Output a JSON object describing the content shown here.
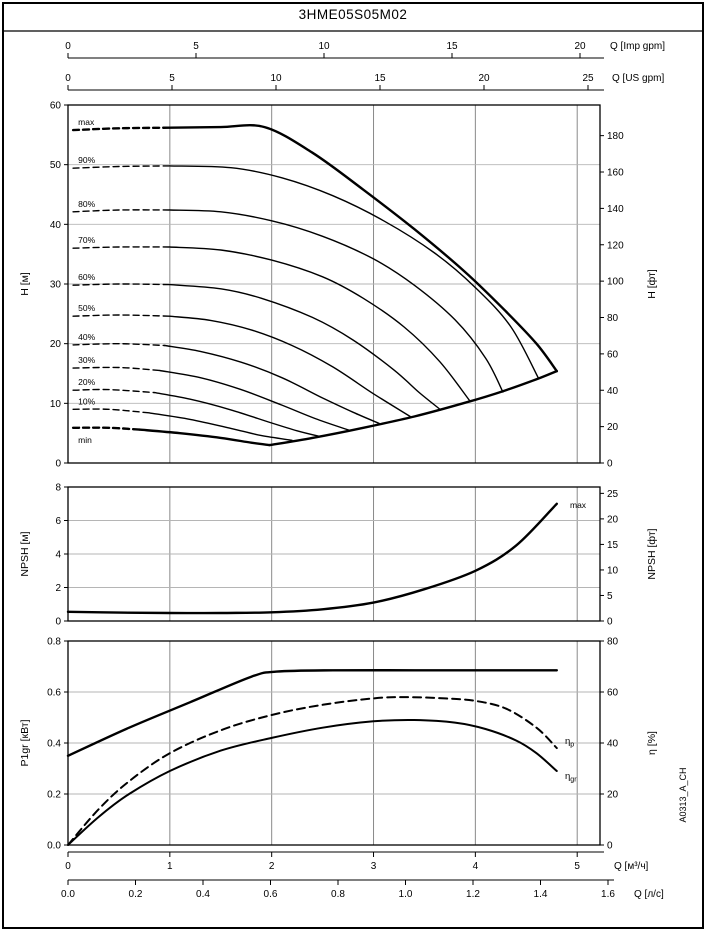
{
  "title": "3HME05S05M02",
  "side_code": "A0313_A_CH",
  "top_axes": [
    {
      "label": "Q [Imp gpm]",
      "ticks": [
        "0",
        "5",
        "10",
        "15",
        "20"
      ]
    },
    {
      "label": "Q [US gpm]",
      "ticks": [
        "0",
        "5",
        "10",
        "15",
        "20",
        "25"
      ]
    }
  ],
  "bottom_axes": [
    {
      "label": "Q [м³/ч]",
      "ticks": [
        "0",
        "1",
        "2",
        "3",
        "4",
        "5"
      ]
    },
    {
      "label": "Q [л/с]",
      "ticks": [
        "0.0",
        "0.2",
        "0.4",
        "0.6",
        "0.8",
        "1.0",
        "1.2",
        "1.4",
        "1.6"
      ]
    }
  ],
  "chart_data": [
    {
      "type": "line",
      "id": "head",
      "ylabel_left": "H [м]",
      "ylabel_right": "H [фт]",
      "ylim_left": [
        0,
        60
      ],
      "xlim_m3h": [
        0,
        5.22
      ],
      "yticks_left": [
        "0",
        "10",
        "20",
        "30",
        "40",
        "50",
        "60"
      ],
      "yticks_right": [
        "0",
        "20",
        "40",
        "60",
        "80",
        "100",
        "120",
        "140",
        "160",
        "180"
      ],
      "curves": [
        {
          "label": "max",
          "bold": true,
          "dash_until": 1.0,
          "points": [
            [
              0.05,
              55.8
            ],
            [
              0.5,
              56.1
            ],
            [
              1.0,
              56.2
            ],
            [
              1.5,
              56.3
            ],
            [
              1.93,
              56.3
            ],
            [
              2.4,
              52.0
            ],
            [
              2.9,
              45.8
            ],
            [
              3.4,
              39.2
            ],
            [
              3.9,
              32.0
            ],
            [
              4.3,
              25.4
            ],
            [
              4.6,
              20.0
            ],
            [
              4.8,
              15.4
            ]
          ]
        },
        {
          "label": "90%",
          "dash_until": 1.0,
          "points": [
            [
              0.05,
              49.4
            ],
            [
              0.5,
              49.7
            ],
            [
              1.0,
              49.8
            ],
            [
              1.6,
              49.5
            ],
            [
              2.1,
              47.8
            ],
            [
              2.6,
              44.8
            ],
            [
              3.1,
              40.6
            ],
            [
              3.6,
              35.2
            ],
            [
              4.0,
              29.4
            ],
            [
              4.35,
              22.8
            ],
            [
              4.62,
              14.2
            ]
          ]
        },
        {
          "label": "80%",
          "dash_until": 1.0,
          "points": [
            [
              0.05,
              42.1
            ],
            [
              0.5,
              42.4
            ],
            [
              1.0,
              42.4
            ],
            [
              1.5,
              42.1
            ],
            [
              2.0,
              40.6
            ],
            [
              2.5,
              38.0
            ],
            [
              3.0,
              34.2
            ],
            [
              3.4,
              29.8
            ],
            [
              3.8,
              24.0
            ],
            [
              4.1,
              17.6
            ],
            [
              4.27,
              11.9
            ]
          ]
        },
        {
          "label": "70%",
          "dash_until": 1.0,
          "points": [
            [
              0.05,
              36.0
            ],
            [
              0.5,
              36.2
            ],
            [
              1.0,
              36.2
            ],
            [
              1.5,
              35.7
            ],
            [
              2.0,
              34.0
            ],
            [
              2.5,
              31.2
            ],
            [
              2.9,
              27.6
            ],
            [
              3.3,
              22.8
            ],
            [
              3.65,
              17.0
            ],
            [
              3.95,
              10.3
            ]
          ]
        },
        {
          "label": "60%",
          "dash_until": 1.0,
          "points": [
            [
              0.05,
              29.8
            ],
            [
              0.5,
              30.0
            ],
            [
              1.0,
              29.9
            ],
            [
              1.5,
              29.2
            ],
            [
              1.9,
              27.6
            ],
            [
              2.4,
              24.4
            ],
            [
              2.8,
              20.6
            ],
            [
              3.2,
              15.6
            ],
            [
              3.45,
              11.8
            ],
            [
              3.66,
              8.9
            ]
          ]
        },
        {
          "label": "50%",
          "dash_until": 1.0,
          "points": [
            [
              0.05,
              24.6
            ],
            [
              0.5,
              24.8
            ],
            [
              1.0,
              24.6
            ],
            [
              1.4,
              23.9
            ],
            [
              1.8,
              22.3
            ],
            [
              2.2,
              19.7
            ],
            [
              2.6,
              16.1
            ],
            [
              3.0,
              11.6
            ],
            [
              3.36,
              7.8
            ]
          ]
        },
        {
          "label": "40%",
          "dash_until": 0.95,
          "points": [
            [
              0.05,
              19.8
            ],
            [
              0.5,
              20.0
            ],
            [
              0.95,
              19.7
            ],
            [
              1.3,
              18.7
            ],
            [
              1.7,
              16.9
            ],
            [
              2.1,
              14.3
            ],
            [
              2.5,
              10.9
            ],
            [
              2.8,
              8.5
            ],
            [
              3.06,
              6.6
            ]
          ]
        },
        {
          "label": "30%",
          "dash_until": 0.9,
          "points": [
            [
              0.05,
              15.9
            ],
            [
              0.5,
              16.0
            ],
            [
              0.9,
              15.5
            ],
            [
              1.3,
              14.3
            ],
            [
              1.7,
              12.3
            ],
            [
              2.1,
              9.7
            ],
            [
              2.45,
              7.3
            ],
            [
              2.76,
              5.5
            ]
          ]
        },
        {
          "label": "20%",
          "dash_until": 0.85,
          "points": [
            [
              0.05,
              12.2
            ],
            [
              0.4,
              12.3
            ],
            [
              0.85,
              11.8
            ],
            [
              1.2,
              10.7
            ],
            [
              1.6,
              8.9
            ],
            [
              2.0,
              6.7
            ],
            [
              2.25,
              5.4
            ],
            [
              2.46,
              4.5
            ]
          ]
        },
        {
          "label": "10%",
          "dash_until": 0.8,
          "points": [
            [
              0.05,
              9.0
            ],
            [
              0.4,
              9.0
            ],
            [
              0.8,
              8.4
            ],
            [
              1.2,
              7.3
            ],
            [
              1.6,
              5.8
            ],
            [
              1.9,
              4.6
            ],
            [
              2.2,
              3.8
            ]
          ]
        },
        {
          "label": "min",
          "bold": true,
          "dash_until": 0.7,
          "points": [
            [
              0.05,
              5.9
            ],
            [
              0.4,
              5.9
            ],
            [
              0.7,
              5.6
            ],
            [
              1.1,
              5.0
            ],
            [
              1.5,
              4.2
            ],
            [
              1.8,
              3.4
            ],
            [
              1.98,
              3.0
            ]
          ]
        }
      ],
      "envelope": [
        [
          1.98,
          3.0
        ],
        [
          2.4,
          4.2
        ],
        [
          2.9,
          5.9
        ],
        [
          3.4,
          7.8
        ],
        [
          3.9,
          10.1
        ],
        [
          4.3,
          12.2
        ],
        [
          4.64,
          14.3
        ],
        [
          4.8,
          15.4
        ]
      ]
    },
    {
      "type": "line",
      "id": "npsh",
      "ylabel_left": "NPSH [м]",
      "ylabel_right": "NPSH [фт]",
      "ylim_left": [
        0,
        8
      ],
      "yticks_left": [
        "0",
        "2",
        "4",
        "6",
        "8"
      ],
      "yticks_right": [
        "0",
        "5",
        "10",
        "15",
        "20",
        "25"
      ],
      "curves": [
        {
          "label": "max",
          "bold": true,
          "points": [
            [
              0,
              0.55
            ],
            [
              0.5,
              0.5
            ],
            [
              1.0,
              0.48
            ],
            [
              1.5,
              0.48
            ],
            [
              2.0,
              0.52
            ],
            [
              2.5,
              0.7
            ],
            [
              3.0,
              1.1
            ],
            [
              3.5,
              1.9
            ],
            [
              4.0,
              3.0
            ],
            [
              4.4,
              4.5
            ],
            [
              4.8,
              7.0
            ]
          ]
        }
      ]
    },
    {
      "type": "line",
      "id": "power",
      "ylabel_left": "P1gr [кВт]",
      "ylabel_right": "η [%]",
      "ylim_left": [
        0,
        0.8
      ],
      "ylim_right": [
        0,
        80
      ],
      "yticks_left": [
        "0.0",
        "0.2",
        "0.4",
        "0.6",
        "0.8"
      ],
      "yticks_right": [
        "0",
        "20",
        "40",
        "60",
        "80"
      ],
      "curves": [
        {
          "label": "P1gr",
          "bold": true,
          "points": [
            [
              0,
              0.35
            ],
            [
              0.6,
              0.46
            ],
            [
              1.2,
              0.56
            ],
            [
              1.8,
              0.66
            ],
            [
              2.05,
              0.68
            ],
            [
              2.6,
              0.685
            ],
            [
              3.4,
              0.685
            ],
            [
              4.2,
              0.685
            ],
            [
              4.8,
              0.685
            ]
          ]
        },
        {
          "label": "η_p",
          "axis": "right",
          "style": "dashed",
          "points": [
            [
              0,
              0
            ],
            [
              0.3,
              14
            ],
            [
              0.6,
              25
            ],
            [
              1.0,
              36
            ],
            [
              1.5,
              45
            ],
            [
              2.0,
              51
            ],
            [
              2.5,
              55
            ],
            [
              3.0,
              57.5
            ],
            [
              3.3,
              58
            ],
            [
              3.7,
              57.5
            ],
            [
              4.0,
              56.5
            ],
            [
              4.3,
              53.5
            ],
            [
              4.6,
              46
            ],
            [
              4.8,
              38
            ]
          ]
        },
        {
          "label": "η_gr",
          "axis": "right",
          "points": [
            [
              0,
              0
            ],
            [
              0.3,
              11
            ],
            [
              0.6,
              20
            ],
            [
              1.0,
              29
            ],
            [
              1.5,
              37
            ],
            [
              2.0,
              42
            ],
            [
              2.5,
              46
            ],
            [
              3.0,
              48.5
            ],
            [
              3.4,
              49
            ],
            [
              3.8,
              48
            ],
            [
              4.1,
              45.5
            ],
            [
              4.4,
              41
            ],
            [
              4.6,
              36
            ],
            [
              4.8,
              29
            ]
          ]
        }
      ]
    }
  ],
  "colors": {
    "curve": "#000000",
    "grid_v": "#8a8a8a",
    "grid_h": "#b5b5b5",
    "frame": "#000000"
  }
}
